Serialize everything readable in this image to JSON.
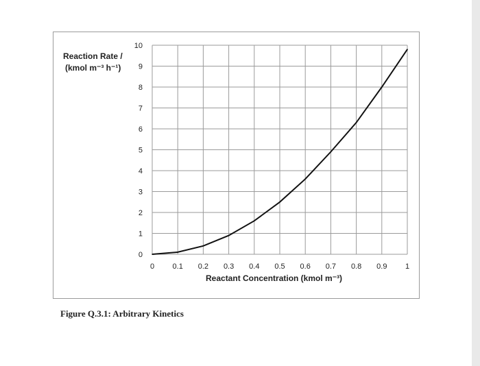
{
  "chart_data": {
    "type": "line",
    "ylabel_line1": "Reaction Rate /",
    "ylabel_line2": "(kmol m⁻³ h⁻¹)",
    "xlabel": "Reactant Concentration (kmol m⁻³)",
    "xlim": [
      0,
      1
    ],
    "ylim": [
      0,
      10
    ],
    "x_ticks": [
      "0",
      "0.1",
      "0.2",
      "0.3",
      "0.4",
      "0.5",
      "0.6",
      "0.7",
      "0.8",
      "0.9",
      "1"
    ],
    "y_ticks": [
      "0",
      "1",
      "2",
      "3",
      "4",
      "5",
      "6",
      "7",
      "8",
      "9",
      "10"
    ],
    "grid": true,
    "series": [
      {
        "x": [
          0,
          0.1,
          0.2,
          0.3,
          0.4,
          0.5,
          0.6,
          0.7,
          0.8,
          0.9,
          1.0
        ],
        "y": [
          0,
          0.1,
          0.4,
          0.9,
          1.6,
          2.5,
          3.6,
          4.9,
          6.3,
          8.0,
          9.8
        ],
        "color": "#111111"
      }
    ]
  },
  "caption": "Figure Q.3.1: Arbitrary Kinetics"
}
